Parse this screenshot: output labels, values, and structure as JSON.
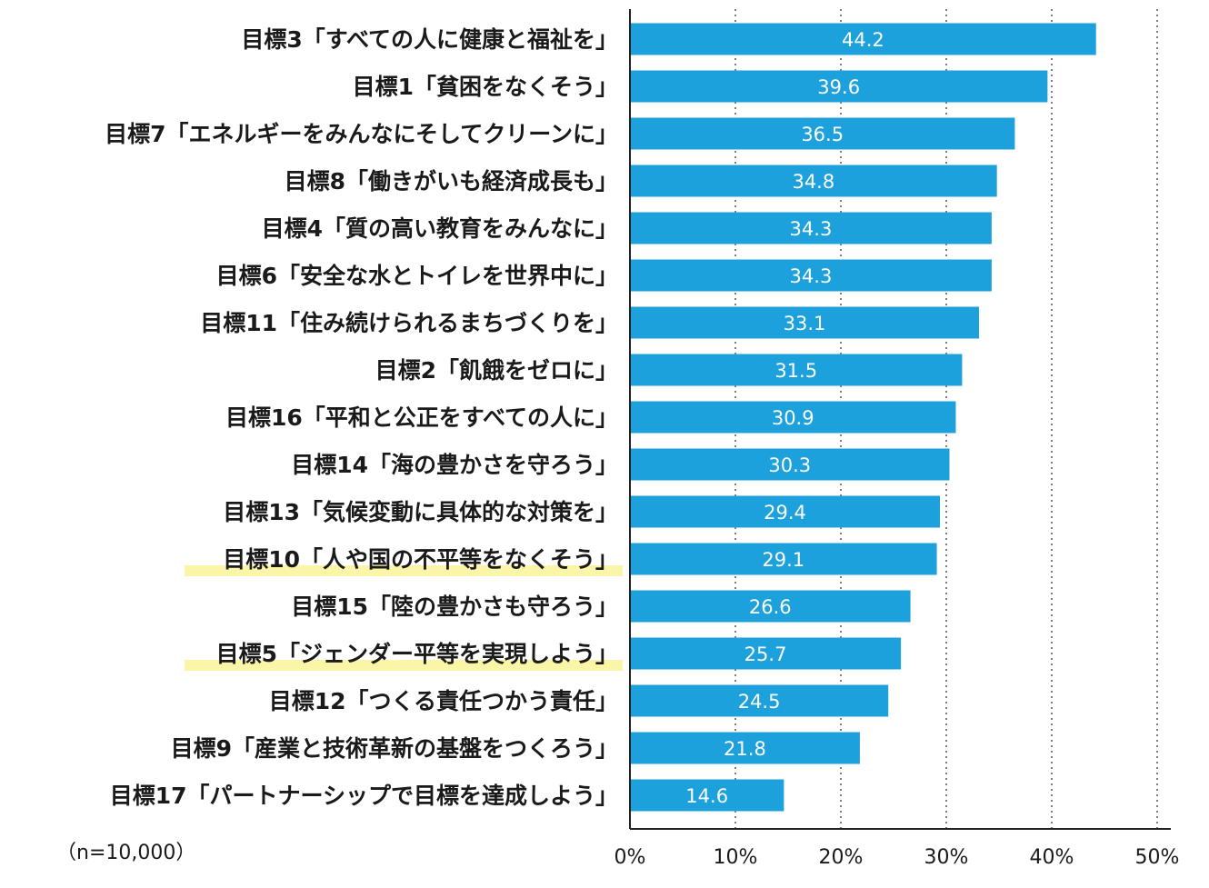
{
  "chart_data": {
    "type": "bar",
    "orientation": "horizontal",
    "categories": [
      "目標3「すべての人に健康と福祉を」",
      "目標1「貧困をなくそう」",
      "目標7「エネルギーをみんなにそしてクリーンに」",
      "目標8「働きがいも経済成長も」",
      "目標4「質の高い教育をみんなに」",
      "目標6「安全な水とトイレを世界中に」",
      "目標11「住み続けられるまちづくりを」",
      "目標2「飢餓をゼロに」",
      "目標16「平和と公正をすべての人に」",
      "目標14「海の豊かさを守ろう」",
      "目標13「気候変動に具体的な対策を」",
      "目標10「人や国の不平等をなくそう」",
      "目標15「陸の豊かさも守ろう」",
      "目標5「ジェンダー平等を実現しよう」",
      "目標12「つくる責任つかう責任」",
      "目標9「産業と技術革新の基盤をつくろう」",
      "目標17「パートナーシップで目標を達成しよう」"
    ],
    "values": [
      44.2,
      39.6,
      36.5,
      34.8,
      34.3,
      34.3,
      33.1,
      31.5,
      30.9,
      30.3,
      29.4,
      29.1,
      26.6,
      25.7,
      24.5,
      21.8,
      14.6
    ],
    "value_labels": [
      "44.2",
      "39.6",
      "36.5",
      "34.8",
      "34.3",
      "34.3",
      "33.1",
      "31.5",
      "30.9",
      "30.3",
      "29.4",
      "29.1",
      "26.6",
      "25.7",
      "24.5",
      "21.8",
      "14.6"
    ],
    "highlighted_categories": [
      "目標10「人や国の不平等をなくそう」",
      "目標5「ジェンダー平等を実現しよう」"
    ],
    "xlim": [
      0,
      50
    ],
    "x_ticks": [
      0,
      10,
      20,
      30,
      40,
      50
    ],
    "x_tick_labels": [
      "0%",
      "10%",
      "20%",
      "30%",
      "40%",
      "50%"
    ],
    "grid": "vertical dotted",
    "note": "（n=10,000）",
    "title": "",
    "xlabel": "",
    "ylabel": ""
  },
  "colors": {
    "bar": "#1da1dd",
    "highlight": "#fbf5a8",
    "text": "#1a1a1a",
    "value_text": "#ffffff",
    "axis": "#222222",
    "grid": "#555555"
  }
}
